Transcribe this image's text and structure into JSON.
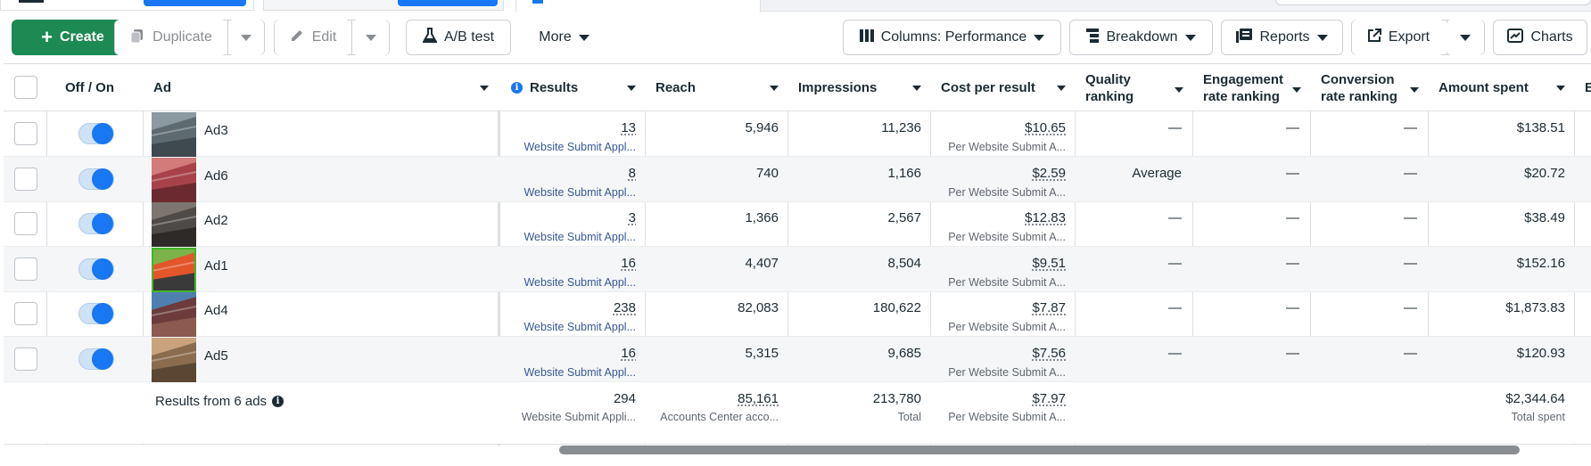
{
  "toolbar": {
    "create": "Create",
    "duplicate": "Duplicate",
    "edit": "Edit",
    "ab_test": "A/B test",
    "more": "More",
    "columns": "Columns: Performance",
    "breakdown": "Breakdown",
    "reports": "Reports",
    "export": "Export",
    "charts": "Charts"
  },
  "columns": {
    "off_on": "Off / On",
    "ad": "Ad",
    "results": "Results",
    "reach": "Reach",
    "impressions": "Impressions",
    "cost_per_result": "Cost per result",
    "quality_ranking_1": "Quality",
    "quality_ranking_2": "ranking",
    "engagement_1": "Engagement",
    "engagement_2": "rate ranking",
    "conversion_1": "Conversion",
    "conversion_2": "rate ranking",
    "amount_spent": "Amount spent",
    "next_col": "E"
  },
  "rows": [
    {
      "name": "Ad3",
      "results": "13",
      "results_sub": "Website Submit Appl...",
      "reach": "5,946",
      "impressions": "11,236",
      "cpr": "$10.65",
      "cpr_sub": "Per Website Submit A...",
      "quality": "—",
      "engagement": "—",
      "conversion": "—",
      "spent": "$138.51",
      "active": true
    },
    {
      "name": "Ad6",
      "results": "8",
      "results_sub": "Website Submit Appl...",
      "reach": "740",
      "impressions": "1,166",
      "cpr": "$2.59",
      "cpr_sub": "Per Website Submit A...",
      "quality": "Average",
      "engagement": "—",
      "conversion": "—",
      "spent": "$20.72",
      "active": true
    },
    {
      "name": "Ad2",
      "results": "3",
      "results_sub": "Website Submit Appl...",
      "reach": "1,366",
      "impressions": "2,567",
      "cpr": "$12.83",
      "cpr_sub": "Per Website Submit A...",
      "quality": "—",
      "engagement": "—",
      "conversion": "—",
      "spent": "$38.49",
      "active": true
    },
    {
      "name": "Ad1",
      "results": "16",
      "results_sub": "Website Submit Appl...",
      "reach": "4,407",
      "impressions": "8,504",
      "cpr": "$9.51",
      "cpr_sub": "Per Website Submit A...",
      "quality": "—",
      "engagement": "—",
      "conversion": "—",
      "spent": "$152.16",
      "active": true
    },
    {
      "name": "Ad4",
      "results": "238",
      "results_sub": "Website Submit Appl...",
      "reach": "82,083",
      "impressions": "180,622",
      "cpr": "$7.87",
      "cpr_sub": "Per Website Submit A...",
      "quality": "—",
      "engagement": "—",
      "conversion": "—",
      "spent": "$1,873.83",
      "active": true
    },
    {
      "name": "Ad5",
      "results": "16",
      "results_sub": "Website Submit Appl...",
      "reach": "5,315",
      "impressions": "9,685",
      "cpr": "$7.56",
      "cpr_sub": "Per Website Submit A...",
      "quality": "—",
      "engagement": "—",
      "conversion": "—",
      "spent": "$120.93",
      "active": true
    }
  ],
  "footer": {
    "label": "Results from 6 ads",
    "results": "294",
    "results_sub": "Website Submit Appli...",
    "reach": "85,161",
    "reach_sub": "Accounts Center acco...",
    "impressions": "213,780",
    "impressions_sub": "Total",
    "cpr": "$7.97",
    "cpr_sub": "Per Website Submit A...",
    "spent": "$2,344.64",
    "spent_sub": "Total spent"
  },
  "colors": {
    "create_green": "#1d8a54",
    "toggle_blue": "#1877f2",
    "link_blue": "#385898"
  }
}
